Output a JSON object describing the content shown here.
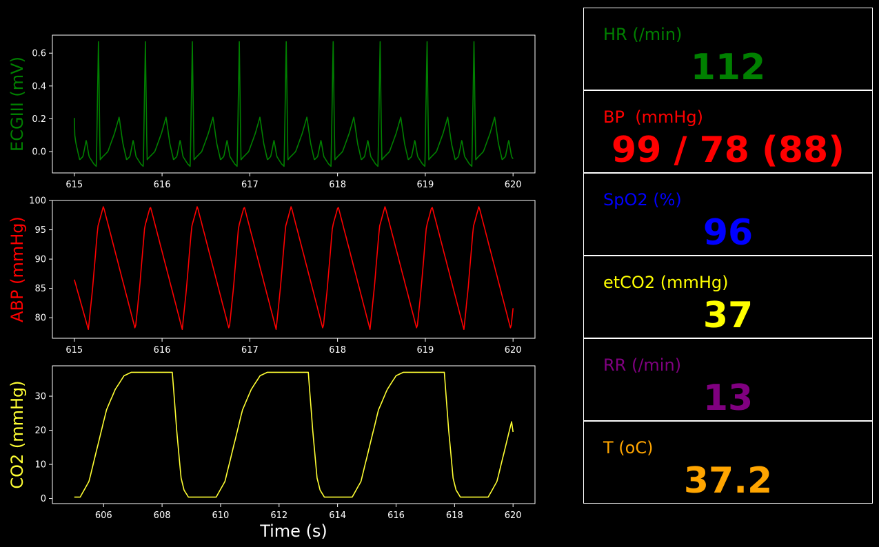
{
  "xlabel": "Time (s)",
  "chart_data": [
    {
      "type": "line",
      "ylabel": "ECGIII (mV)",
      "color": "#008000",
      "xlim": [
        614.75,
        620.25
      ],
      "ylim": [
        -0.13,
        0.71
      ],
      "xticks": [
        615,
        616,
        617,
        618,
        619,
        620
      ],
      "yticks": [
        0.0,
        0.2,
        0.4,
        0.6
      ],
      "ytick_labels": [
        "0.0",
        "0.2",
        "0.4",
        "0.6"
      ],
      "wave": "ecg",
      "period": 0.535,
      "first_r": 615.275,
      "x_range": [
        615.0,
        620.0
      ],
      "r_peak": 0.67,
      "t_peak": 0.21,
      "p_peak": 0.07,
      "baseline": -0.05,
      "min": -0.09
    },
    {
      "type": "line",
      "ylabel": "ABP (mmHg)",
      "color": "#ff0000",
      "xlim": [
        614.75,
        620.25
      ],
      "ylim": [
        76.5,
        100.0
      ],
      "xticks": [
        615,
        616,
        617,
        618,
        619,
        620
      ],
      "yticks": [
        80,
        85,
        90,
        95,
        100
      ],
      "ytick_labels": [
        "80",
        "85",
        "90",
        "95",
        "100"
      ],
      "wave": "abp",
      "period": 0.535,
      "first_min": 615.16,
      "x_range": [
        615.0,
        620.0
      ],
      "start_value": 86.5,
      "systolic": 99,
      "diastolic": 78
    },
    {
      "type": "line",
      "ylabel": "CO2 (mmHg)",
      "color": "#ffff33",
      "xlim": [
        604.25,
        620.75
      ],
      "ylim": [
        -1.5,
        38.9
      ],
      "xticks": [
        606,
        608,
        610,
        612,
        614,
        616,
        618,
        620
      ],
      "yticks": [
        0,
        10,
        20,
        30
      ],
      "ytick_labels": [
        "0",
        "10",
        "20",
        "30"
      ],
      "wave": "co2",
      "period": 4.65,
      "x_range": [
        605.0,
        620.0
      ],
      "rise_start": 605.2,
      "plateau_end": 608.35,
      "plateau": 37.0,
      "floor": 0.4,
      "end_value": 19.5
    }
  ],
  "vitals": [
    {
      "label": "HR (/min)",
      "value": "112",
      "color": "#008000"
    },
    {
      "label": "BP  (mmHg)",
      "value": "99 / 78 (88)",
      "color": "#ff0000"
    },
    {
      "label": "SpO2 (%)",
      "value": "96",
      "color": "#0000ff"
    },
    {
      "label": "etCO2 (mmHg)",
      "value": "37",
      "color": "#ffff00"
    },
    {
      "label": "RR (/min)",
      "value": "13",
      "color": "#800080"
    },
    {
      "label": "T (oC)",
      "value": "37.2",
      "color": "#ffa500"
    }
  ]
}
